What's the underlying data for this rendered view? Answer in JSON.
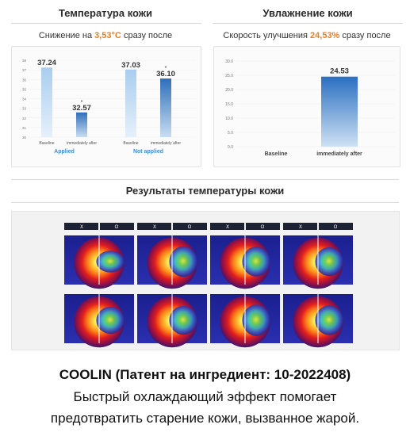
{
  "left_panel": {
    "title": "Температура кожи",
    "subtitle_prefix": "Снижение на ",
    "subtitle_value": "3,53°C",
    "subtitle_suffix": " сразу после"
  },
  "right_panel": {
    "title": "Увлажнение кожи",
    "subtitle_prefix": "Скорость улучшения ",
    "subtitle_value": "24,53%",
    "subtitle_suffix": " сразу после"
  },
  "thermal_section": {
    "title": "Результаты температуры кожи",
    "header_labels": [
      "X",
      "O"
    ]
  },
  "footer": {
    "brand_line": "COOLIN (Патент на ингредиент: 10-2022408)",
    "line1": "Быстрый охлаждающий эффект помогает",
    "line2": "предотвратить старение кожи, вызванное жарой."
  },
  "colors": {
    "accent": "#f07d1b",
    "group_label": "#3b8ed8",
    "bar_light": "#bcd8f2",
    "bar_dark": "#3f7ec4"
  },
  "chart_data": [
    {
      "type": "bar",
      "title": "",
      "ylim": [
        30,
        38
      ],
      "yticks": [
        30,
        31,
        32,
        33,
        34,
        35,
        36,
        37,
        38
      ],
      "groups": [
        {
          "name": "Applied",
          "categories": [
            "Baseline",
            "immediately after"
          ],
          "values": [
            37.24,
            32.57
          ],
          "labels": [
            "37.24",
            "32.57"
          ],
          "stars": [
            false,
            true
          ]
        },
        {
          "name": "Not applied",
          "categories": [
            "Baseline",
            "immediately after"
          ],
          "values": [
            37.03,
            36.1
          ],
          "labels": [
            "37.03",
            "36.10"
          ],
          "stars": [
            false,
            true
          ]
        }
      ]
    },
    {
      "type": "bar",
      "title": "",
      "ylim": [
        0,
        30
      ],
      "yticks": [
        0.0,
        5.0,
        10.0,
        15.0,
        20.0,
        25.0,
        30.0
      ],
      "ytick_labels": [
        "0.0",
        "5.0",
        "10.0",
        "15.0",
        "20.0",
        "25.0",
        "30.0"
      ],
      "categories": [
        "Baseline",
        "immediately after"
      ],
      "values": [
        0,
        24.53
      ],
      "labels": [
        "",
        "24.53"
      ]
    }
  ]
}
